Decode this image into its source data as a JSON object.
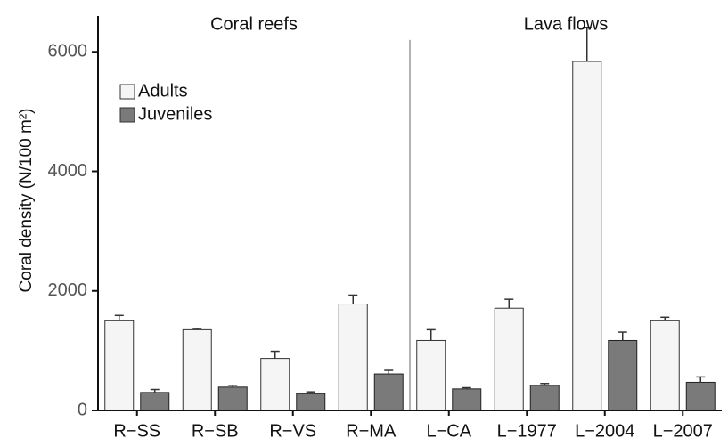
{
  "chart_data": {
    "type": "bar",
    "ylabel": "Coral density (N/100 m²)",
    "ylim": [
      0,
      6600
    ],
    "yticks": [
      "0",
      "2000",
      "4000",
      "6000"
    ],
    "ytick_values": [
      0,
      2000,
      4000,
      6000
    ],
    "categories": [
      "R−SS",
      "R−SB",
      "R−VS",
      "R−MA",
      "L−CA",
      "L−1977",
      "L−2004",
      "L−2007"
    ],
    "groups": [
      {
        "label": "Coral reefs",
        "categories": [
          "R−SS",
          "R−SB",
          "R−VS",
          "R−MA"
        ]
      },
      {
        "label": "Lava flows",
        "categories": [
          "L−CA",
          "L−1977",
          "L−2004",
          "L−2007"
        ]
      }
    ],
    "series": [
      {
        "name": "Adults",
        "color": "#f5f5f5",
        "values": [
          1500,
          1350,
          870,
          1780,
          1170,
          1710,
          5840,
          1500
        ],
        "errors": [
          90,
          20,
          120,
          150,
          180,
          150,
          570,
          60
        ]
      },
      {
        "name": "Juveniles",
        "color": "#7a7a7a",
        "values": [
          300,
          390,
          280,
          610,
          360,
          420,
          1170,
          470
        ],
        "errors": [
          50,
          30,
          30,
          60,
          20,
          30,
          140,
          90
        ]
      }
    ],
    "legend_position": "top-left",
    "grid": false,
    "group_divider": true
  }
}
